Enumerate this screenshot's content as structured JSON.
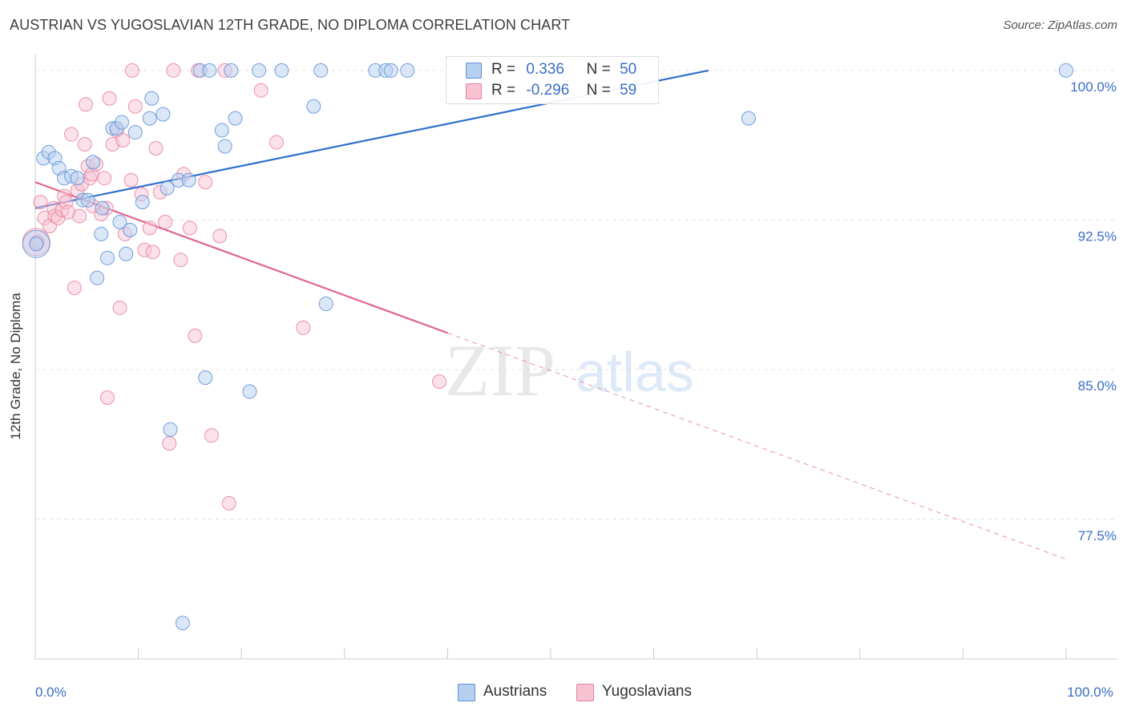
{
  "title": "AUSTRIAN VS YUGOSLAVIAN 12TH GRADE, NO DIPLOMA CORRELATION CHART",
  "source": "Source: ZipAtlas.com",
  "watermark": {
    "zip": "ZIP",
    "atlas": "atlas"
  },
  "legend": {
    "austrians": {
      "r_label": "R =",
      "r_value": "0.336",
      "n_label": "N =",
      "n_value": "50"
    },
    "yugoslavians": {
      "r_label": "R =",
      "r_value": "-0.296",
      "n_label": "N =",
      "n_value": "59"
    }
  },
  "bottom_legend": {
    "austrians": "Austrians",
    "yugoslavians": "Yugoslavians"
  },
  "colors": {
    "austrians_fill": "#b8d0f0",
    "austrians_stroke": "#5b8fd8",
    "austrians_line": "#2f6fcf",
    "yugoslavians_fill": "#f7c3d3",
    "yugoslavians_stroke": "#e8809f",
    "yugoslavians_line": "#e0648b",
    "tick_label": "#3a6fc6",
    "grid": "#e2e2e2"
  },
  "chart_data": {
    "type": "scatter",
    "title": "AUSTRIAN VS YUGOSLAVIAN 12TH GRADE, NO DIPLOMA CORRELATION CHART",
    "xlabel": "",
    "ylabel": "12th Grade, No Diploma",
    "xlim": [
      0,
      100
    ],
    "ylim": [
      70.5,
      100.8
    ],
    "x_tick_labels": [
      {
        "value": 0,
        "label": "0.0%"
      },
      {
        "value": 100,
        "label": "100.0%"
      }
    ],
    "y_ticks": [
      {
        "value": 100,
        "label": "100.0%"
      },
      {
        "value": 92.5,
        "label": "92.5%"
      },
      {
        "value": 85,
        "label": "85.0%"
      },
      {
        "value": 77.5,
        "label": "77.5%"
      }
    ],
    "series": [
      {
        "name": "Austrians",
        "trend": {
          "x0": 0,
          "y0": 93.1,
          "x1": 65.3,
          "y1": 100.0,
          "solid_until": 65.3
        },
        "points": [
          [
            0.1,
            91.3
          ],
          [
            0.8,
            95.6
          ],
          [
            1.3,
            95.9
          ],
          [
            1.9,
            95.6
          ],
          [
            2.3,
            95.1
          ],
          [
            2.8,
            94.6
          ],
          [
            3.5,
            94.7
          ],
          [
            4.1,
            94.6
          ],
          [
            4.6,
            93.5
          ],
          [
            5.1,
            93.5
          ],
          [
            5.6,
            95.4
          ],
          [
            6.0,
            89.6
          ],
          [
            6.4,
            91.8
          ],
          [
            6.5,
            93.1
          ],
          [
            7.0,
            90.6
          ],
          [
            7.5,
            97.1
          ],
          [
            7.9,
            97.1
          ],
          [
            8.2,
            92.4
          ],
          [
            8.4,
            97.4
          ],
          [
            8.8,
            90.8
          ],
          [
            9.2,
            92.0
          ],
          [
            9.7,
            96.9
          ],
          [
            10.4,
            93.4
          ],
          [
            11.1,
            97.6
          ],
          [
            11.3,
            98.6
          ],
          [
            12.4,
            97.8
          ],
          [
            12.8,
            94.1
          ],
          [
            13.1,
            82.0
          ],
          [
            13.9,
            94.5
          ],
          [
            14.3,
            72.3
          ],
          [
            14.9,
            94.5
          ],
          [
            16.0,
            100.0
          ],
          [
            16.5,
            84.6
          ],
          [
            16.9,
            100.0
          ],
          [
            18.1,
            97.0
          ],
          [
            18.4,
            96.2
          ],
          [
            19.0,
            100.0
          ],
          [
            19.4,
            97.6
          ],
          [
            20.8,
            83.9
          ],
          [
            21.7,
            100.0
          ],
          [
            23.9,
            100.0
          ],
          [
            27.0,
            98.2
          ],
          [
            27.7,
            100.0
          ],
          [
            28.2,
            88.3
          ],
          [
            33.0,
            100.0
          ],
          [
            34.0,
            100.0
          ],
          [
            34.5,
            100.0
          ],
          [
            36.1,
            100.0
          ],
          [
            69.2,
            97.6
          ],
          [
            100.0,
            100.0
          ]
        ],
        "large_points": [
          [
            0.1,
            91.3
          ]
        ]
      },
      {
        "name": "Yugoslavians",
        "trend": {
          "x0": 0,
          "y0": 94.4,
          "x1": 100,
          "y1": 75.5,
          "solid_until": 40.0
        },
        "points": [
          [
            0.2,
            91.4
          ],
          [
            0.5,
            93.4
          ],
          [
            0.9,
            92.6
          ],
          [
            1.4,
            92.2
          ],
          [
            1.8,
            93.1
          ],
          [
            1.9,
            92.7
          ],
          [
            2.2,
            92.6
          ],
          [
            2.6,
            93.0
          ],
          [
            2.8,
            93.7
          ],
          [
            3.0,
            93.4
          ],
          [
            3.2,
            92.9
          ],
          [
            3.5,
            96.8
          ],
          [
            3.8,
            89.1
          ],
          [
            4.1,
            94.0
          ],
          [
            4.3,
            92.7
          ],
          [
            4.5,
            94.3
          ],
          [
            4.8,
            96.3
          ],
          [
            4.9,
            98.3
          ],
          [
            5.1,
            95.2
          ],
          [
            5.3,
            94.6
          ],
          [
            5.5,
            94.8
          ],
          [
            5.6,
            93.2
          ],
          [
            5.9,
            95.3
          ],
          [
            6.4,
            92.8
          ],
          [
            6.7,
            94.6
          ],
          [
            6.9,
            93.1
          ],
          [
            7.0,
            83.6
          ],
          [
            7.2,
            98.6
          ],
          [
            7.5,
            96.3
          ],
          [
            7.9,
            97.0
          ],
          [
            8.2,
            88.1
          ],
          [
            8.5,
            96.5
          ],
          [
            8.7,
            91.8
          ],
          [
            9.3,
            94.5
          ],
          [
            9.4,
            100.0
          ],
          [
            9.7,
            98.2
          ],
          [
            10.3,
            93.8
          ],
          [
            10.6,
            91.0
          ],
          [
            11.1,
            92.1
          ],
          [
            11.4,
            90.9
          ],
          [
            11.7,
            96.1
          ],
          [
            12.1,
            93.9
          ],
          [
            12.6,
            92.4
          ],
          [
            13.0,
            81.3
          ],
          [
            13.4,
            100.0
          ],
          [
            14.1,
            90.5
          ],
          [
            14.4,
            94.8
          ],
          [
            15.0,
            92.1
          ],
          [
            15.5,
            86.7
          ],
          [
            15.8,
            100.0
          ],
          [
            16.5,
            94.4
          ],
          [
            17.1,
            81.7
          ],
          [
            17.9,
            91.7
          ],
          [
            18.4,
            100.0
          ],
          [
            18.8,
            78.3
          ],
          [
            21.9,
            99.0
          ],
          [
            23.4,
            96.4
          ],
          [
            26.0,
            87.1
          ],
          [
            39.2,
            84.4
          ]
        ],
        "large_points": [
          [
            0.1,
            91.4
          ]
        ]
      }
    ]
  }
}
